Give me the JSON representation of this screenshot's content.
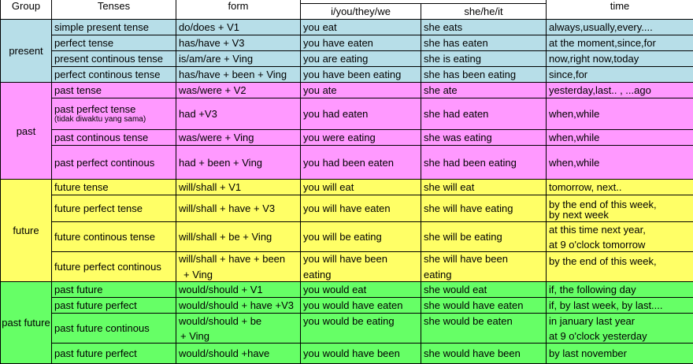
{
  "header": {
    "group": "Group",
    "tenses": "Tenses",
    "form": "form",
    "col_i": "i/you/they/we",
    "col_she": "she/he/it",
    "time": "time"
  },
  "groups": {
    "present": "present",
    "past": "past",
    "future": "future",
    "past_future": "past future"
  },
  "colors": {
    "present": "#b7dee8",
    "past": "#ff99ff",
    "future": "#ffff66",
    "past_future": "#66ff66"
  },
  "rows": [
    {
      "tense": "simple present tense",
      "form": "do/does + V1",
      "i": "you eat",
      "she": "she eats",
      "time": "always,usually,every...."
    },
    {
      "tense": "perfect tense",
      "form": "has/have + V3",
      "i": "you have eaten",
      "she": "she has eaten",
      "time": "at the moment,since,for"
    },
    {
      "tense": "present continous tense",
      "form": "is/am/are + Ving",
      "i": "you are eating",
      "she": "she is eating",
      "time": "now,right now,today"
    },
    {
      "tense": "perfect continous tense",
      "form": "has/have + been + Ving",
      "i": "you have been eating",
      "she": "she has been eating",
      "time": "since,for"
    },
    {
      "tense": "past tense",
      "form": "was/were + V2",
      "i": "you ate",
      "she": "she ate",
      "time": "yesterday,last.. , ...ago"
    },
    {
      "tense": "past perfect tense",
      "note": "(tidak diwaktu yang sama)",
      "form": "had +V3",
      "i": "you had eaten",
      "she": "she had eaten",
      "time": "when,while"
    },
    {
      "tense": "past continous tense",
      "form": "was/were + Ving",
      "i": "you were eating",
      "she": "she was eating",
      "time": "when,while"
    },
    {
      "tense": "past perfect continous",
      "form": "had + been + Ving",
      "i": "you had been eaten",
      "she": "she had been eating",
      "time": "when,while"
    },
    {
      "tense": "future tense",
      "form": "will/shall + V1",
      "i": "you will eat",
      "she": "she will eat",
      "time": "tomorrow, next.."
    },
    {
      "tense": "future perfect tense",
      "form": "will/shall + have + V3",
      "i": "you will have eaten",
      "she": "she will have eating",
      "time": "by the end of this week,",
      "time2": "by next week"
    },
    {
      "tense": "future continous tense",
      "form": "will/shall + be + Ving",
      "i": "you will be eating",
      "she": "she will be eating",
      "time": "at this time next year,",
      "time2": "at 9 o'clock tomorrow"
    },
    {
      "tense": "future perfect continous",
      "form": "will/shall + have + been",
      "form2": "+ Ving",
      "i": "you will have been",
      "i2": "eating",
      "she": "she will have been",
      "she2": "eating",
      "time": "by the end of this week,"
    },
    {
      "tense": "past future",
      "form": "would/should + V1",
      "i": "you would eat",
      "she": "she would eat",
      "time": "if, the following day"
    },
    {
      "tense": "past future perfect",
      "form": "would/should + have +V3",
      "i": "you would have eaten",
      "she": "she would have eaten",
      "time": "if, by last week, by last...."
    },
    {
      "tense": "past future continous",
      "form": "would/should + be",
      "form2": "+ Ving",
      "i": "you would be eating",
      "she": "she would be eaten",
      "time": "in january last year",
      "time2": "at 9 o'clock yesterday"
    },
    {
      "tense": "past future perfect",
      "form": "would/should +have",
      "i": "you would have been",
      "she": "she would have been",
      "time": "by last november"
    }
  ]
}
